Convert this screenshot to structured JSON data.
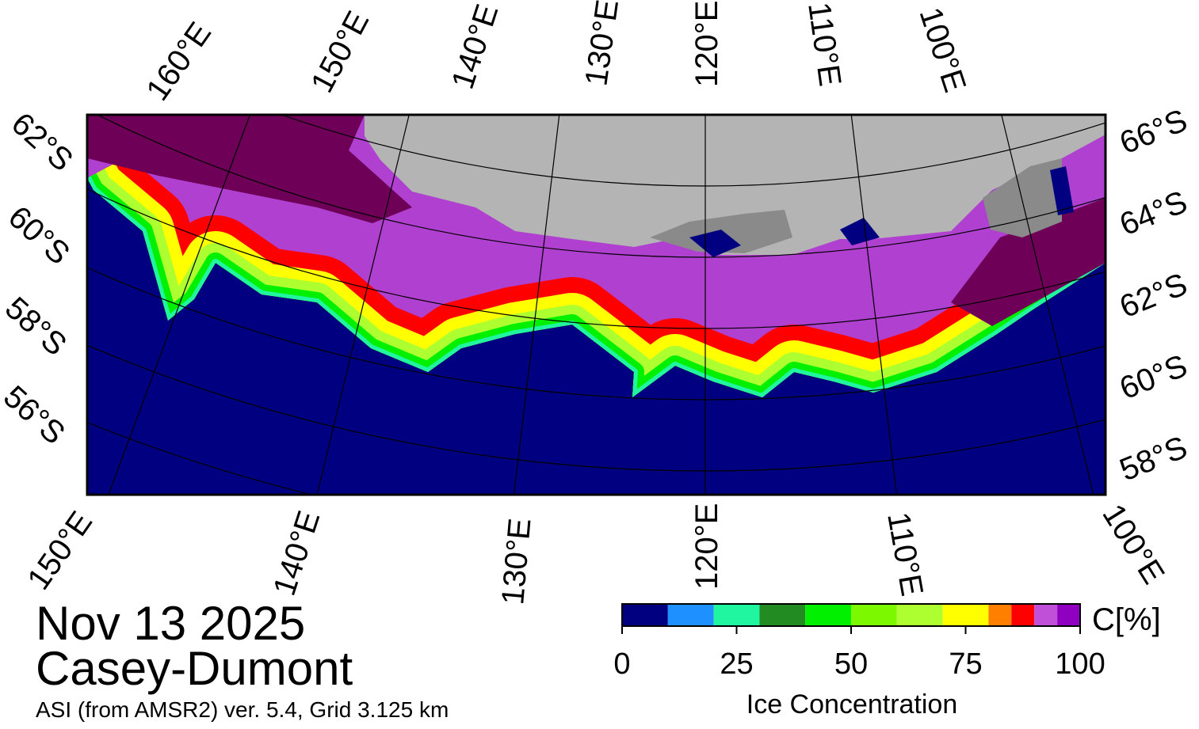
{
  "header": {
    "date": "Nov 13 2025",
    "region": "Casey-Dumont",
    "source": "ASI (from AMSR2) ver. 5.4,  Grid 3.125 km"
  },
  "map": {
    "top_longitude_labels": [
      "160°E",
      "150°E",
      "140°E",
      "130°E",
      "120°E",
      "110°E",
      "100°E"
    ],
    "bottom_longitude_labels": [
      "150°E",
      "140°E",
      "130°E",
      "120°E",
      "110°E",
      "100°E"
    ],
    "left_latitude_labels": [
      "62°S",
      "60°S",
      "58°S",
      "56°S"
    ],
    "right_latitude_labels": [
      "66°S",
      "64°S",
      "62°S",
      "60°S",
      "58°S"
    ]
  },
  "colorbar": {
    "label": "Ice Concentration",
    "unit": "C[%]",
    "lim": [
      0,
      100
    ],
    "bins": [
      0,
      10,
      20,
      30,
      40,
      50,
      60,
      70,
      80,
      85,
      90,
      95,
      100
    ],
    "colors": [
      "#000080",
      "#1e90ff",
      "#20f5a0",
      "#228b22",
      "#00f000",
      "#7cf800",
      "#adff2f",
      "#ffff00",
      "#ff8000",
      "#ff0000",
      "#c050d8",
      "#9000c0"
    ],
    "ticks": [
      0,
      25,
      50,
      75,
      100
    ]
  }
}
